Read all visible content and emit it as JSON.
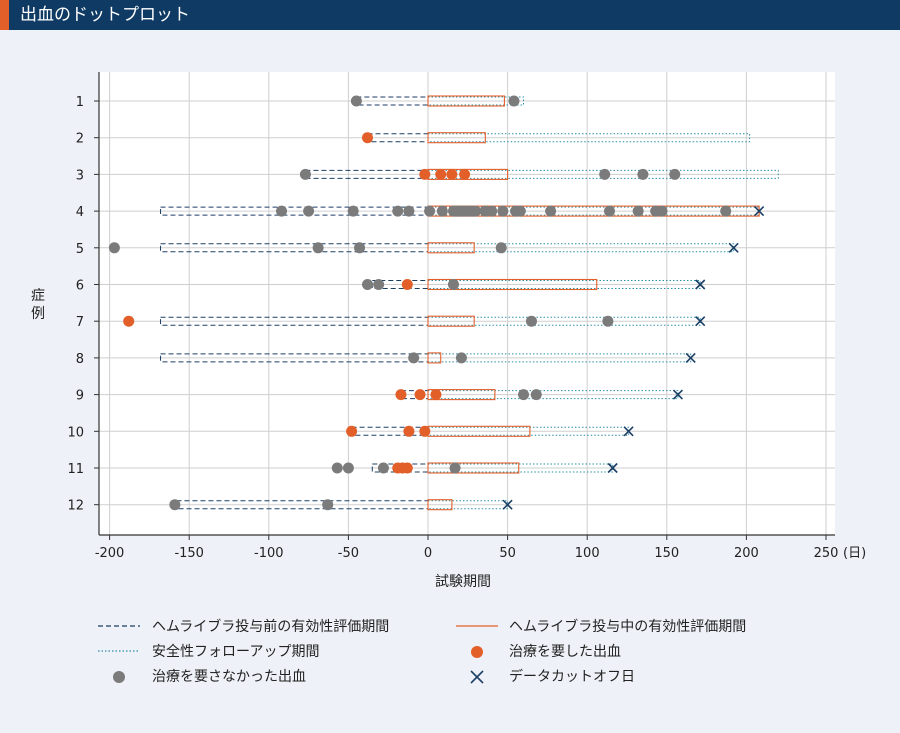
{
  "header": {
    "title": "出血のドットプロット"
  },
  "colors": {
    "header_bg": "#0e3a64",
    "accent": "#e35f2a",
    "navy": "#1c3f66",
    "teal": "#2a8fa8",
    "gray_dot": "#7b7b7b",
    "orange_dot": "#e35f2a",
    "grid": "#cfcfcf"
  },
  "chart_data": {
    "type": "scatter",
    "xlabel": "試験期間",
    "ylabel": "症例",
    "x_unit_label": "(日)",
    "xlim": [
      -200,
      250
    ],
    "xticks": [
      -200,
      -150,
      -100,
      -50,
      0,
      50,
      100,
      150,
      200,
      250
    ],
    "ytick_labels": [
      "1",
      "2",
      "3",
      "4",
      "5",
      "6",
      "7",
      "8",
      "9",
      "10",
      "11",
      "12"
    ],
    "grid": true,
    "legend_position": "bottom",
    "series": [
      {
        "name": "ヘムライブラ投与前の有効性評価期間",
        "style": "dashed-box"
      },
      {
        "name": "ヘムライブラ投与中の有効性評価期間",
        "style": "solid-box"
      },
      {
        "name": "安全性フォローアップ期間",
        "style": "dotted-box"
      },
      {
        "name": "治療を要した出血",
        "style": "orange-dot"
      },
      {
        "name": "治療を要さなかった出血",
        "style": "gray-dot"
      },
      {
        "name": "データカットオフ日",
        "style": "x-marker"
      }
    ],
    "cases": [
      {
        "case": "1",
        "pre_start": -45,
        "on_end": 48,
        "follow_end": 60,
        "cutoff": null,
        "treated": [],
        "untreated": [
          -45,
          54
        ]
      },
      {
        "case": "2",
        "pre_start": -38,
        "on_end": 36,
        "follow_end": 202,
        "cutoff": null,
        "treated": [
          -38
        ],
        "untreated": []
      },
      {
        "case": "3",
        "pre_start": -77,
        "on_end": 50,
        "follow_end": 220,
        "cutoff": null,
        "treated": [
          -2,
          8,
          15,
          23
        ],
        "untreated": [
          -77,
          111,
          135,
          155
        ]
      },
      {
        "case": "4",
        "pre_start": -168,
        "on_end": 208,
        "follow_end": 208,
        "cutoff": 208,
        "treated": [],
        "untreated": [
          -92,
          -75,
          -47,
          -19,
          -12,
          1,
          9,
          16,
          18,
          20,
          22,
          24,
          26,
          28,
          30,
          36,
          40,
          47,
          55,
          58,
          77,
          114,
          132,
          143,
          147,
          187
        ]
      },
      {
        "case": "5",
        "pre_start": -168,
        "on_end": 29,
        "follow_end": 192,
        "cutoff": 192,
        "treated": [],
        "untreated": [
          -197,
          -69,
          -43,
          46
        ]
      },
      {
        "case": "6",
        "pre_start": -35,
        "on_end": 106,
        "follow_end": 171,
        "cutoff": 171,
        "treated": [
          -13
        ],
        "untreated": [
          -38,
          -31,
          16
        ]
      },
      {
        "case": "7",
        "pre_start": -168,
        "on_end": 29,
        "follow_end": 171,
        "cutoff": 171,
        "treated": [
          -188
        ],
        "untreated": [
          65,
          113
        ]
      },
      {
        "case": "8",
        "pre_start": -168,
        "on_end": 8,
        "follow_end": 165,
        "cutoff": 165,
        "treated": [],
        "untreated": [
          -9,
          21
        ]
      },
      {
        "case": "9",
        "pre_start": -17,
        "on_end": 42,
        "follow_end": 157,
        "cutoff": 157,
        "treated": [
          -17,
          -5,
          5
        ],
        "untreated": [
          60,
          68
        ]
      },
      {
        "case": "10",
        "pre_start": -48,
        "on_end": 64,
        "follow_end": 126,
        "cutoff": 126,
        "treated": [
          -48,
          -12,
          -2
        ],
        "untreated": []
      },
      {
        "case": "11",
        "pre_start": -35,
        "on_end": 57,
        "follow_end": 116,
        "cutoff": 116,
        "treated": [
          -19,
          -16,
          -13
        ],
        "untreated": [
          -57,
          -50,
          -28,
          17
        ]
      },
      {
        "case": "12",
        "pre_start": -158,
        "on_end": 15,
        "follow_end": 50,
        "cutoff": 50,
        "treated": [],
        "untreated": [
          -159,
          -63
        ]
      }
    ]
  }
}
